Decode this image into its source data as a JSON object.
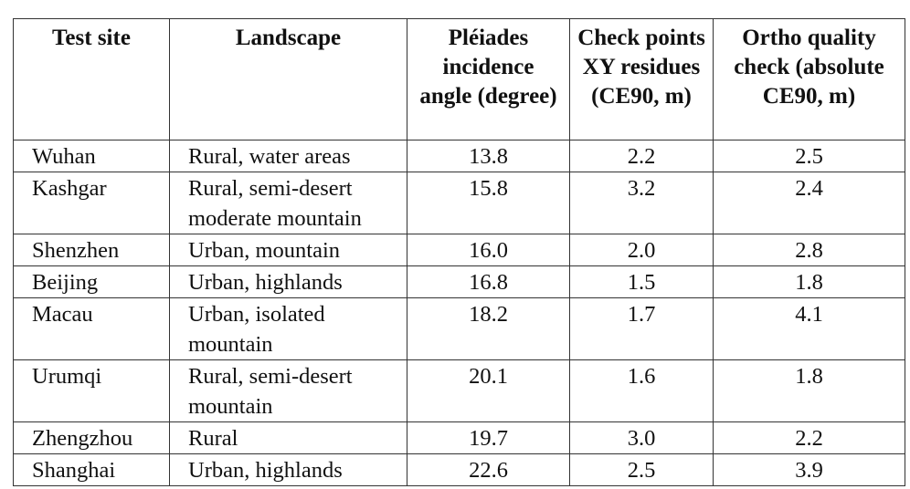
{
  "table": {
    "headers": [
      "Test site",
      "Landscape",
      "Pléiades incidence angle (degree)",
      "Check points XY residues (CE90, m)",
      "Ortho quality check (absolute CE90, m)"
    ],
    "rows": [
      {
        "site": "Wuhan",
        "landscape": "Rural, water areas",
        "angle": "13.8",
        "residues": "2.2",
        "ortho": "2.5"
      },
      {
        "site": "Kashgar",
        "landscape": "Rural, semi-desert moderate mountain",
        "angle": "15.8",
        "residues": "3.2",
        "ortho": "2.4"
      },
      {
        "site": "Shenzhen",
        "landscape": "Urban, mountain",
        "angle": "16.0",
        "residues": "2.0",
        "ortho": "2.8"
      },
      {
        "site": "Beijing",
        "landscape": "Urban, highlands",
        "angle": "16.8",
        "residues": "1.5",
        "ortho": "1.8"
      },
      {
        "site": "Macau",
        "landscape": "Urban, isolated mountain",
        "angle": "18.2",
        "residues": "1.7",
        "ortho": "4.1"
      },
      {
        "site": "Urumqi",
        "landscape": "Rural, semi-desert mountain",
        "angle": "20.1",
        "residues": "1.6",
        "ortho": "1.8"
      },
      {
        "site": "Zhengzhou",
        "landscape": "Rural",
        "angle": "19.7",
        "residues": "3.0",
        "ortho": "2.2"
      },
      {
        "site": "Shanghai",
        "landscape": "Urban, highlands",
        "angle": "22.6",
        "residues": "2.5",
        "ortho": "3.9"
      }
    ]
  }
}
